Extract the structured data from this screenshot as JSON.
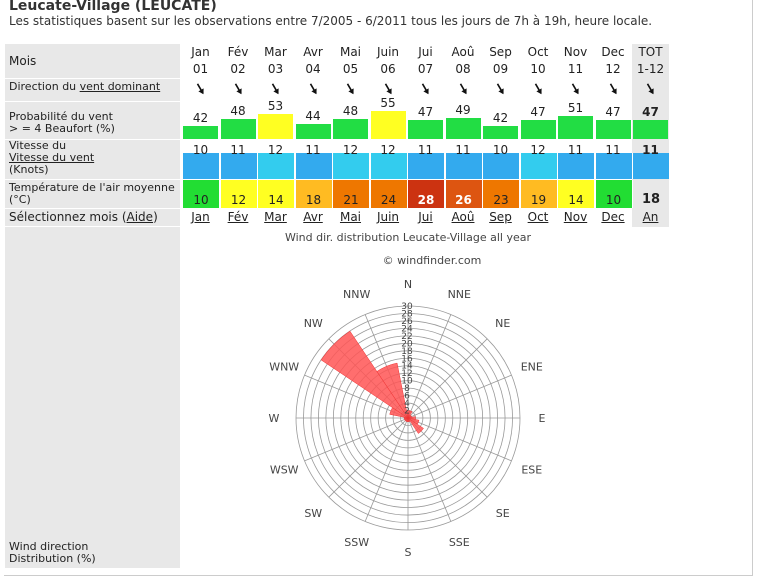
{
  "header": {
    "title": "Leucate-Village (LEUCATE)",
    "subtitle": "Les statistiques basent sur les observations entre 7/2005 - 6/2011 tous les jours de 7h à 19h, heure locale."
  },
  "labels": {
    "mois": "Mois",
    "direction_prefix": "Direction du ",
    "direction_link": "vent dominant",
    "prob_line1": "Probabilité du vent",
    "prob_line2": "> = 4 Beaufort (%)",
    "speed_line1": "Vitesse du",
    "speed_link": "Vitesse du vent",
    "speed_line3": "(Knots)",
    "temp_line1": "Température de l'air moyenne",
    "temp_line2": "(°C)",
    "select_prefix": "Sélectionnez mois (",
    "select_link": "Aide",
    "select_suffix": ")",
    "wind_dist_line1": "Wind direction",
    "wind_dist_line2": "Distribution (%)"
  },
  "months": [
    {
      "name": "Jan",
      "num": "01",
      "prob": 42,
      "speed": 10,
      "temp": 10,
      "link": "Jan"
    },
    {
      "name": "Fév",
      "num": "02",
      "prob": 48,
      "speed": 11,
      "temp": 12,
      "link": "Fév"
    },
    {
      "name": "Mar",
      "num": "03",
      "prob": 53,
      "speed": 12,
      "temp": 14,
      "link": "Mar"
    },
    {
      "name": "Avr",
      "num": "04",
      "prob": 44,
      "speed": 11,
      "temp": 18,
      "link": "Avr"
    },
    {
      "name": "Mai",
      "num": "05",
      "prob": 48,
      "speed": 12,
      "temp": 21,
      "link": "Mai"
    },
    {
      "name": "Juin",
      "num": "06",
      "prob": 55,
      "speed": 12,
      "temp": 24,
      "link": "Juin"
    },
    {
      "name": "Jui",
      "num": "07",
      "prob": 47,
      "speed": 11,
      "temp": 28,
      "link": "Jui"
    },
    {
      "name": "Aoû",
      "num": "08",
      "prob": 49,
      "speed": 11,
      "temp": 26,
      "link": "Aoû"
    },
    {
      "name": "Sep",
      "num": "09",
      "prob": 42,
      "speed": 10,
      "temp": 23,
      "link": "Sep"
    },
    {
      "name": "Oct",
      "num": "10",
      "prob": 47,
      "speed": 12,
      "temp": 19,
      "link": "Oct"
    },
    {
      "name": "Nov",
      "num": "11",
      "prob": 51,
      "speed": 11,
      "temp": 14,
      "link": "Nov"
    },
    {
      "name": "Dec",
      "num": "12",
      "prob": 47,
      "speed": 11,
      "temp": 10,
      "link": "Dec"
    }
  ],
  "total": {
    "name": "TOT",
    "num": "1-12",
    "prob": 47,
    "speed": 11,
    "temp": 18,
    "link": "An"
  },
  "colors": {
    "prob_green": "#22dd44",
    "prob_yellow": "#ffff22",
    "speed_blue": "#33aaee",
    "speed_cyan": "#33ccee",
    "temp_green": "#22dd33",
    "temp_yellow": "#ffff22",
    "temp_orange1": "#ffbb22",
    "temp_orange2": "#ee7700",
    "temp_orange3": "#dd5511",
    "temp_red": "#cc3311",
    "rose_fill": "#ff5555",
    "label_bg": "#e8e8e8"
  },
  "rose": {
    "title": "Wind dir. distribution Leucate-Village all year",
    "credit": "© windfinder.com",
    "directions": [
      "N",
      "NNE",
      "NE",
      "ENE",
      "E",
      "ESE",
      "SE",
      "SSE",
      "S",
      "SSW",
      "SW",
      "WSW",
      "W",
      "WNW",
      "NW",
      "NNW"
    ],
    "scale_labels": [
      "2",
      "4",
      "6",
      "8",
      "10",
      "12",
      "14",
      "16",
      "18",
      "20",
      "22",
      "24",
      "26",
      "28",
      "30"
    ],
    "distribution": [
      {
        "dir": "N",
        "value": 2
      },
      {
        "dir": "NNE",
        "value": 2
      },
      {
        "dir": "NE",
        "value": 1
      },
      {
        "dir": "ENE",
        "value": 1
      },
      {
        "dir": "E",
        "value": 2
      },
      {
        "dir": "ESE",
        "value": 3
      },
      {
        "dir": "SE",
        "value": 5
      },
      {
        "dir": "SSE",
        "value": 1
      },
      {
        "dir": "S",
        "value": 1
      },
      {
        "dir": "SSW",
        "value": 1
      },
      {
        "dir": "SW",
        "value": 1
      },
      {
        "dir": "WSW",
        "value": 1
      },
      {
        "dir": "W",
        "value": 1
      },
      {
        "dir": "WNW",
        "value": 5
      },
      {
        "dir": "NW",
        "value": 28
      },
      {
        "dir": "NNW",
        "value": 15
      }
    ]
  }
}
